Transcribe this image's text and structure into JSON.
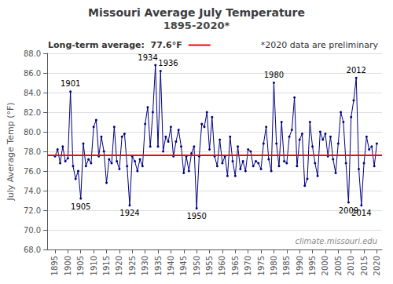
{
  "chart_data": {
    "type": "line",
    "title": "Missouri Average July Temperature",
    "subtitle": "1895-2020*",
    "y_label": "July Average Temp (°F)",
    "x": [
      1895,
      1896,
      1897,
      1898,
      1899,
      1900,
      1901,
      1902,
      1903,
      1904,
      1905,
      1906,
      1907,
      1908,
      1909,
      1910,
      1911,
      1912,
      1913,
      1914,
      1915,
      1916,
      1917,
      1918,
      1919,
      1920,
      1921,
      1922,
      1923,
      1924,
      1925,
      1926,
      1927,
      1928,
      1929,
      1930,
      1931,
      1932,
      1933,
      1934,
      1935,
      1936,
      1937,
      1938,
      1939,
      1940,
      1941,
      1942,
      1943,
      1944,
      1945,
      1946,
      1947,
      1948,
      1949,
      1950,
      1951,
      1952,
      1953,
      1954,
      1955,
      1956,
      1957,
      1958,
      1959,
      1960,
      1961,
      1962,
      1963,
      1964,
      1965,
      1966,
      1967,
      1968,
      1969,
      1970,
      1971,
      1972,
      1973,
      1974,
      1975,
      1976,
      1977,
      1978,
      1979,
      1980,
      1981,
      1982,
      1983,
      1984,
      1985,
      1986,
      1987,
      1988,
      1989,
      1990,
      1991,
      1992,
      1993,
      1994,
      1995,
      1996,
      1997,
      1998,
      1999,
      2000,
      2001,
      2002,
      2003,
      2004,
      2005,
      2006,
      2007,
      2008,
      2009,
      2010,
      2011,
      2012,
      2013,
      2014,
      2015,
      2016,
      2017,
      2018,
      2019,
      2020
    ],
    "values": [
      77.5,
      78.2,
      76.8,
      78.5,
      77.0,
      77.3,
      84.1,
      76.5,
      75.2,
      76.0,
      73.2,
      78.8,
      76.5,
      77.2,
      76.8,
      80.5,
      81.2,
      77.5,
      79.5,
      78.0,
      74.8,
      77.2,
      76.8,
      80.5,
      77.0,
      76.2,
      79.5,
      79.8,
      76.5,
      72.5,
      77.5,
      77.0,
      76.0,
      77.2,
      76.5,
      80.8,
      82.5,
      78.5,
      82.0,
      86.8,
      78.5,
      86.2,
      78.0,
      79.5,
      79.0,
      80.5,
      77.5,
      79.0,
      80.2,
      78.5,
      75.8,
      77.5,
      76.0,
      77.8,
      78.5,
      72.2,
      77.5,
      80.8,
      80.5,
      82.0,
      78.2,
      81.5,
      77.5,
      76.5,
      79.2,
      76.8,
      77.5,
      75.5,
      79.5,
      77.0,
      75.5,
      78.5,
      76.2,
      77.0,
      76.0,
      78.2,
      78.0,
      76.5,
      77.0,
      76.8,
      76.2,
      78.8,
      80.5,
      77.2,
      76.0,
      85.0,
      78.8,
      76.5,
      81.0,
      77.0,
      76.8,
      79.5,
      80.2,
      83.5,
      76.5,
      79.2,
      79.8,
      74.5,
      75.2,
      81.0,
      78.5,
      76.8,
      75.5,
      80.0,
      79.2,
      79.8,
      77.5,
      79.5,
      77.2,
      75.8,
      78.8,
      82.0,
      81.0,
      76.8,
      72.8,
      81.5,
      83.2,
      85.5,
      76.2,
      72.5,
      76.8,
      79.5,
      78.2,
      78.5,
      76.5,
      78.8
    ],
    "color": "#000080",
    "marker": "circle",
    "xlim": [
      1892,
      2022
    ],
    "xticks": [
      1895,
      1900,
      1905,
      1910,
      1915,
      1920,
      1925,
      1930,
      1935,
      1940,
      1945,
      1950,
      1955,
      1960,
      1965,
      1970,
      1975,
      1980,
      1985,
      1990,
      1995,
      2000,
      2005,
      2010,
      2015,
      2020
    ],
    "ylim": [
      68.0,
      88.0
    ],
    "yticks": [
      {
        "value": 68,
        "label": "68.0"
      },
      {
        "value": 70,
        "label": "70.0"
      },
      {
        "value": 72,
        "label": "72.0"
      },
      {
        "value": 74,
        "label": "74.0"
      },
      {
        "value": 76,
        "label": "76.0"
      },
      {
        "value": 78,
        "label": "78.0"
      },
      {
        "value": 80,
        "label": "80.0"
      },
      {
        "value": 82,
        "label": "82.0"
      },
      {
        "value": 84,
        "label": "84.0"
      },
      {
        "value": 86,
        "label": "86.0"
      },
      {
        "value": 88,
        "label": "88.0"
      }
    ],
    "grid": true,
    "reference_line": {
      "value": 77.6,
      "label": "Long-term average:  77.6°F",
      "color": "#FF0000"
    },
    "annotations": [
      {
        "x": 1901,
        "y": 84.1,
        "label": "1901",
        "position": "above"
      },
      {
        "x": 1905,
        "y": 73.2,
        "label": "1905",
        "position": "below"
      },
      {
        "x": 1924,
        "y": 72.5,
        "label": "1924",
        "position": "below"
      },
      {
        "x": 1934,
        "y": 86.8,
        "label": "1934",
        "position": "above"
      },
      {
        "x": 1936,
        "y": 86.2,
        "label": "1936",
        "position": "above"
      },
      {
        "x": 1950,
        "y": 72.2,
        "label": "1950",
        "position": "below"
      },
      {
        "x": 1980,
        "y": 85.0,
        "label": "1980",
        "position": "above"
      },
      {
        "x": 2009,
        "y": 72.8,
        "label": "2009",
        "position": "below"
      },
      {
        "x": 2012,
        "y": 85.5,
        "label": "2012",
        "position": "above"
      },
      {
        "x": 2014,
        "y": 72.5,
        "label": "2014",
        "position": "below"
      }
    ],
    "note": "*2020 data are preliminary",
    "watermark": "climate.missouri.edu"
  }
}
